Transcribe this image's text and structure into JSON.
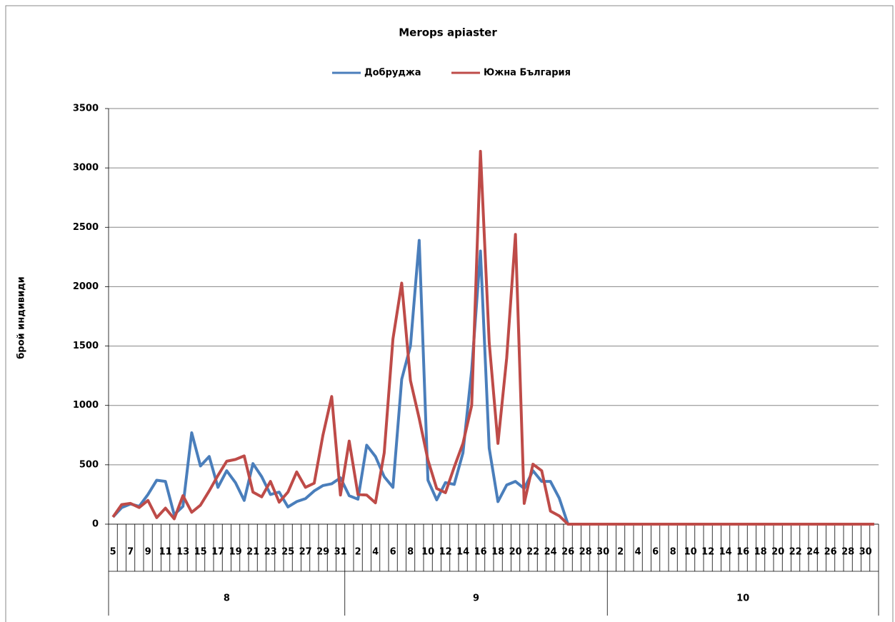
{
  "chart_data": {
    "type": "line",
    "title": "Merops apiaster",
    "y_label": "брой индивиди",
    "categories": [
      5,
      null,
      7,
      null,
      9,
      null,
      11,
      null,
      13,
      null,
      15,
      null,
      17,
      null,
      19,
      null,
      21,
      null,
      23,
      null,
      25,
      null,
      27,
      null,
      29,
      null,
      31,
      null,
      2,
      null,
      4,
      null,
      6,
      null,
      8,
      null,
      10,
      null,
      12,
      null,
      14,
      null,
      16,
      null,
      18,
      null,
      20,
      null,
      22,
      null,
      24,
      null,
      26,
      null,
      28,
      null,
      30,
      null,
      2,
      null,
      4,
      null,
      6,
      null,
      8,
      null,
      10,
      null,
      12,
      null,
      14,
      null,
      16,
      null,
      18,
      null,
      20,
      null,
      22,
      null,
      24,
      null,
      26,
      null,
      28,
      null,
      30,
      null
    ],
    "groups": [
      {
        "name": "8",
        "size": 27
      },
      {
        "name": "9",
        "size": 30
      },
      {
        "name": "10",
        "size": 31
      }
    ],
    "series": [
      {
        "name": "Добруджа",
        "color": "#4a7ebb",
        "values": [
          60,
          140,
          170,
          150,
          250,
          370,
          360,
          80,
          150,
          770,
          490,
          570,
          310,
          450,
          350,
          200,
          510,
          400,
          250,
          270,
          145,
          190,
          215,
          280,
          325,
          340,
          390,
          240,
          210,
          665,
          570,
          400,
          310,
          1220,
          1500,
          2390,
          370,
          205,
          350,
          335,
          600,
          1300,
          2300,
          640,
          190,
          330,
          360,
          300,
          450,
          360,
          360,
          220,
          0,
          0,
          0,
          0,
          0,
          0,
          0,
          0,
          0,
          0,
          0,
          0,
          0,
          0,
          0,
          0,
          0,
          0,
          0,
          0,
          0,
          0,
          0,
          0,
          0,
          0,
          0,
          0,
          0,
          0,
          0,
          0,
          0,
          0,
          0,
          0
        ]
      },
      {
        "name": "Южна България",
        "color": "#be4b48",
        "values": [
          60,
          165,
          175,
          140,
          200,
          55,
          135,
          45,
          240,
          100,
          160,
          280,
          410,
          530,
          545,
          575,
          270,
          230,
          360,
          185,
          270,
          440,
          310,
          345,
          750,
          1075,
          245,
          700,
          250,
          245,
          180,
          600,
          1560,
          2030,
          1210,
          890,
          540,
          300,
          265,
          480,
          680,
          1000,
          3140,
          1530,
          680,
          1400,
          2440,
          175,
          505,
          450,
          110,
          70,
          0,
          0,
          0,
          0,
          0,
          0,
          0,
          0,
          0,
          0,
          0,
          0,
          0,
          0,
          0,
          0,
          0,
          0,
          0,
          0,
          0,
          0,
          0,
          0,
          0,
          0,
          0,
          0,
          0,
          0,
          0,
          0,
          0,
          0,
          0,
          0
        ]
      }
    ],
    "ylim": [
      0,
      3500
    ],
    "yticks": [
      0,
      500,
      1000,
      1500,
      2000,
      2500,
      3000,
      3500
    ],
    "grid": true
  }
}
